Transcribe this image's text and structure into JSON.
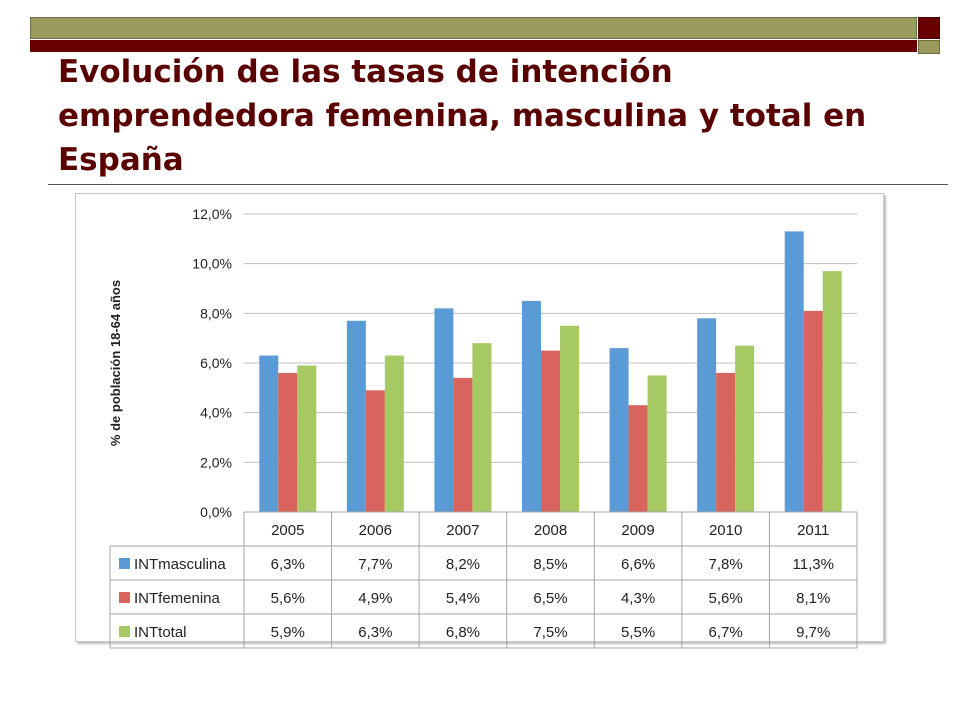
{
  "slide": {
    "title": "Evolución de las tasas de intención emprendedora femenina, masculina y total en España"
  },
  "chart_data": {
    "type": "bar",
    "title": "",
    "xlabel": "",
    "ylabel": "% de población 18-64 años",
    "ylim": [
      0,
      12
    ],
    "yticks": [
      "0,0%",
      "2,0%",
      "4,0%",
      "6,0%",
      "8,0%",
      "10,0%",
      "12,0%"
    ],
    "grid": true,
    "categories": [
      "2005",
      "2006",
      "2007",
      "2008",
      "2009",
      "2010",
      "2011"
    ],
    "series": [
      {
        "name": "INTmasculina",
        "color": "#5b9bd5",
        "values": [
          6.3,
          7.7,
          8.2,
          8.5,
          6.6,
          7.8,
          11.3
        ],
        "labels": [
          "6,3%",
          "7,7%",
          "8,2%",
          "8,5%",
          "6,6%",
          "7,8%",
          "11,3%"
        ]
      },
      {
        "name": "INTfemenina",
        "color": "#d9635d",
        "values": [
          5.6,
          4.9,
          5.4,
          6.5,
          4.3,
          5.6,
          8.1
        ],
        "labels": [
          "5,6%",
          "4,9%",
          "5,4%",
          "6,5%",
          "4,3%",
          "5,6%",
          "8,1%"
        ]
      },
      {
        "name": "INTtotal",
        "color": "#a6c964",
        "values": [
          5.9,
          6.3,
          6.8,
          7.5,
          5.5,
          6.7,
          9.7
        ],
        "labels": [
          "5,9%",
          "6,3%",
          "6,8%",
          "7,5%",
          "5,5%",
          "6,7%",
          "9,7%"
        ]
      }
    ]
  }
}
